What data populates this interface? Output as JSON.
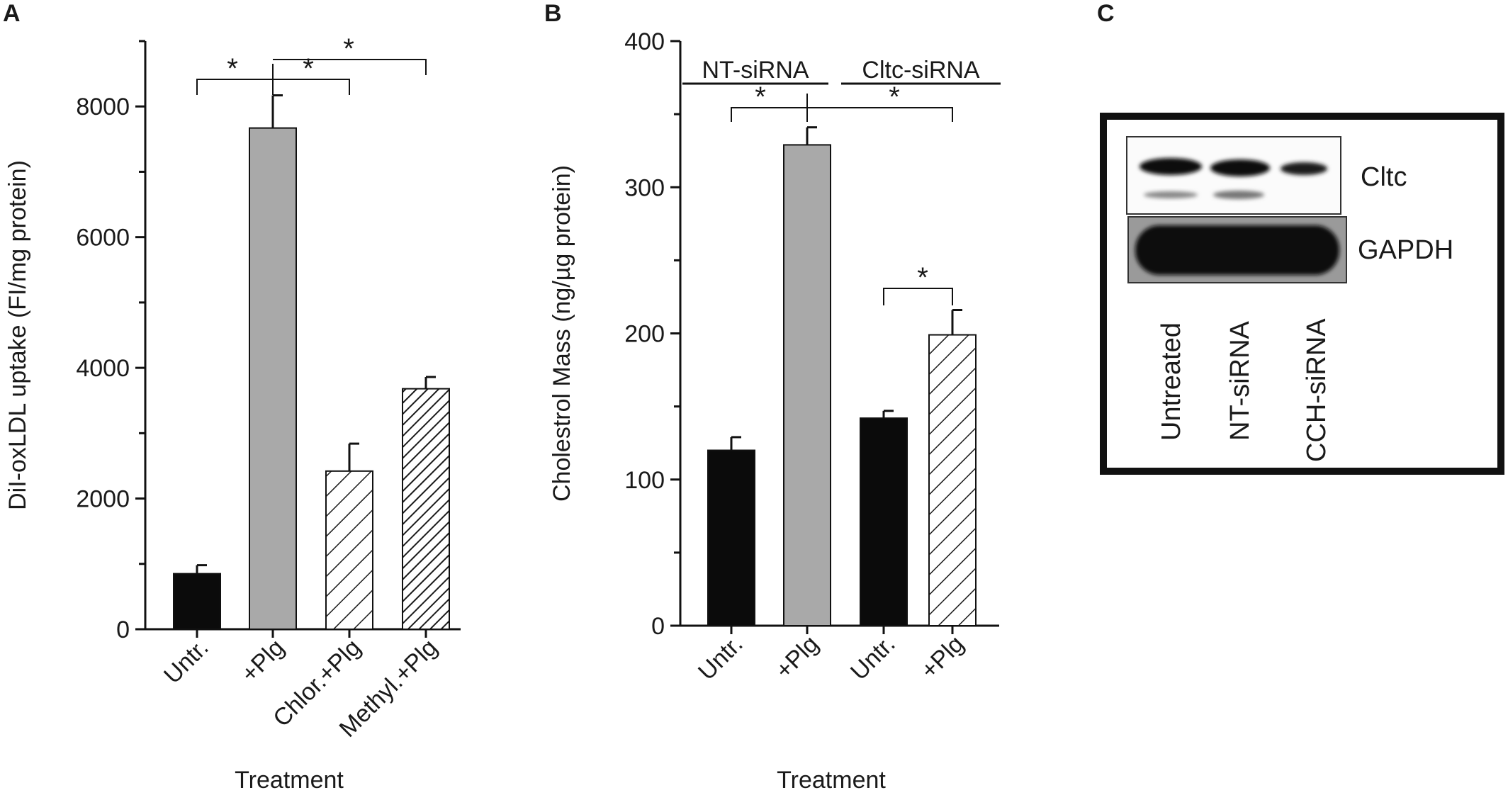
{
  "panels": {
    "a": "A",
    "b": "B",
    "c": "C"
  },
  "significance_mark": "*",
  "chart_data": [
    {
      "type": "bar",
      "panel": "A",
      "categories": [
        "Untr.",
        "+Plg",
        "Chlor.+Plg",
        "Methyl.+Plg"
      ],
      "values": [
        850,
        7670,
        2420,
        3680
      ],
      "errors": [
        130,
        500,
        420,
        180
      ],
      "patterns": [
        "solid-black",
        "solid-gray",
        "hatch-sparse",
        "hatch-dense"
      ],
      "xlabel": "Treatment",
      "ylabel": "DiI-oxLDL uptake (FI/mg protein)",
      "ylim": [
        0,
        9000
      ],
      "yticks": [
        0,
        2000,
        4000,
        6000,
        8000
      ],
      "significance": [
        {
          "from": 0,
          "to": 1,
          "label": "*"
        },
        {
          "from": 1,
          "to": 2,
          "label": "*"
        },
        {
          "from": 1,
          "to": 3,
          "label": "*"
        }
      ],
      "grid": false
    },
    {
      "type": "bar",
      "panel": "B",
      "categories": [
        "Untr.",
        "+Plg",
        "Untr.",
        "+Plg"
      ],
      "groups": [
        {
          "name": "NT-siRNA",
          "indices": [
            0,
            1
          ]
        },
        {
          "name": "Cltc-siRNA",
          "indices": [
            2,
            3
          ]
        }
      ],
      "values": [
        120,
        329,
        142,
        199
      ],
      "errors": [
        9,
        12,
        5,
        17
      ],
      "patterns": [
        "solid-black",
        "solid-gray",
        "solid-black",
        "hatch-sparse"
      ],
      "xlabel": "Treatment",
      "ylabel": "Cholestrol Mass (ng/µg protein)",
      "ylim": [
        0,
        400
      ],
      "yticks": [
        0,
        100,
        200,
        300,
        400
      ],
      "significance": [
        {
          "from": 0,
          "to": 1,
          "label": "*"
        },
        {
          "from": 1,
          "to": 3,
          "label": "*"
        },
        {
          "from": 2,
          "to": 3,
          "label": "*"
        }
      ],
      "grid": false
    }
  ],
  "blot": {
    "bands": [
      "Cltc",
      "GAPDH"
    ],
    "lanes": [
      "Untreated",
      "NT-siRNA",
      "CCH-siRNA"
    ]
  }
}
